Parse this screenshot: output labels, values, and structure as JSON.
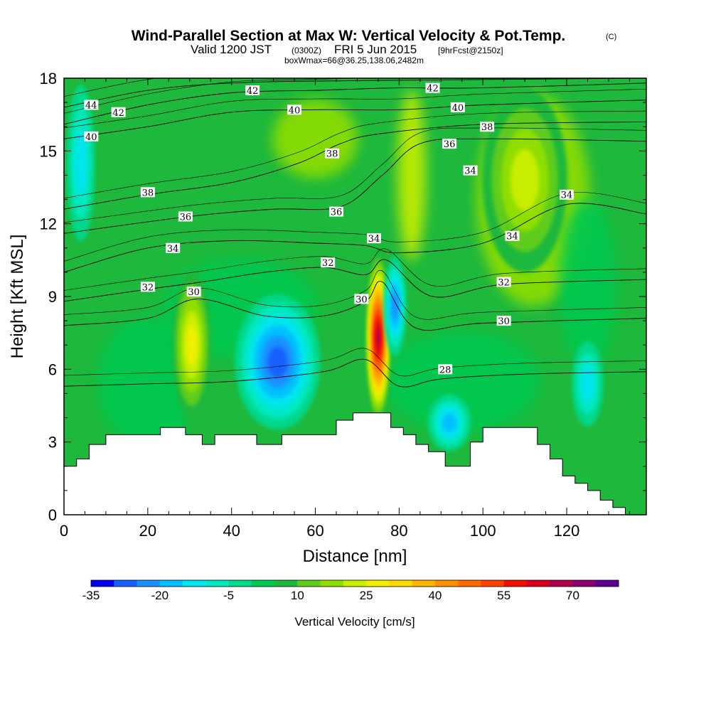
{
  "title": {
    "main": "Wind-Parallel Section at Max W: Vertical Velocity & Pot.Temp.",
    "copyright": "(C)",
    "valid_prefix": "Valid 1200 JST",
    "valid_utc": "(0300Z)",
    "valid_date": "FRI 5 Jun 2015",
    "forecast": "[9hrFcst@2150z]",
    "box_info": "boxWmax=66@36.25,138.06,2482m"
  },
  "chart_data": {
    "type": "heatmap",
    "xlabel": "Distance [nm]",
    "ylabel": "Height [Kft MSL]",
    "xlim": [
      0,
      139
    ],
    "ylim": [
      0,
      18
    ],
    "x_ticks": [
      0,
      20,
      40,
      60,
      80,
      100,
      120
    ],
    "y_ticks": [
      0,
      3,
      6,
      9,
      12,
      15,
      18
    ],
    "colorbar": {
      "title": "Vertical Velocity [cm/s]",
      "labels": [
        "-35",
        "-20",
        "-5",
        "10",
        "25",
        "40",
        "55",
        "70"
      ],
      "levels": [
        -35,
        -30,
        -25,
        -20,
        -15,
        -10,
        -5,
        0,
        5,
        10,
        15,
        20,
        25,
        30,
        35,
        40,
        45,
        50,
        55,
        60,
        65,
        70,
        75
      ],
      "colors": [
        "#0000f0",
        "#1560ff",
        "#1a90ff",
        "#00bfff",
        "#00e5ee",
        "#00e8c0",
        "#00d88a",
        "#00c850",
        "#1db83c",
        "#5fcc1a",
        "#90de00",
        "#c8ee00",
        "#f0f000",
        "#ffd800",
        "#ffb400",
        "#ff9000",
        "#ff6a00",
        "#ff4000",
        "#f01000",
        "#d80020",
        "#b0004c",
        "#8a006e",
        "#600090"
      ]
    },
    "terrain_kft": [
      [
        0,
        2.0
      ],
      [
        3,
        2.0
      ],
      [
        3,
        2.3
      ],
      [
        6,
        2.3
      ],
      [
        6,
        2.9
      ],
      [
        10,
        2.9
      ],
      [
        10,
        3.3
      ],
      [
        23,
        3.3
      ],
      [
        23,
        3.6
      ],
      [
        29,
        3.6
      ],
      [
        29,
        3.3
      ],
      [
        33,
        3.3
      ],
      [
        33,
        2.9
      ],
      [
        36,
        2.9
      ],
      [
        36,
        3.3
      ],
      [
        46,
        3.3
      ],
      [
        46,
        2.9
      ],
      [
        52,
        2.9
      ],
      [
        52,
        3.3
      ],
      [
        65,
        3.3
      ],
      [
        65,
        3.9
      ],
      [
        69,
        3.9
      ],
      [
        69,
        4.2
      ],
      [
        78,
        4.2
      ],
      [
        78,
        3.6
      ],
      [
        81,
        3.6
      ],
      [
        81,
        3.3
      ],
      [
        84,
        3.3
      ],
      [
        84,
        2.9
      ],
      [
        87,
        2.9
      ],
      [
        87,
        2.6
      ],
      [
        91,
        2.6
      ],
      [
        91,
        2.0
      ],
      [
        97,
        2.0
      ],
      [
        97,
        3.0
      ],
      [
        100,
        3.0
      ],
      [
        100,
        3.6
      ],
      [
        113,
        3.6
      ],
      [
        113,
        2.9
      ],
      [
        116,
        2.9
      ],
      [
        116,
        2.3
      ],
      [
        119,
        2.3
      ],
      [
        119,
        1.6
      ],
      [
        122,
        1.6
      ],
      [
        122,
        1.3
      ],
      [
        125,
        1.3
      ],
      [
        125,
        1.0
      ],
      [
        128,
        1.0
      ],
      [
        128,
        0.6
      ],
      [
        131,
        0.6
      ],
      [
        131,
        0.3
      ],
      [
        134,
        0.3
      ],
      [
        134,
        0.0
      ],
      [
        139,
        0.0
      ]
    ],
    "vertical_velocity_features": [
      {
        "name": "updraft-core",
        "x": 75,
        "y": 7.3,
        "value": 66
      },
      {
        "name": "downdraft-core",
        "x": 51,
        "y": 6.3,
        "value": -33
      },
      {
        "name": "updraft-west",
        "x": 30.5,
        "y": 7.0,
        "value": 28
      },
      {
        "name": "updraft-upper-east",
        "x": 110,
        "y": 13.8,
        "value": 24
      },
      {
        "name": "downdraft-lee",
        "x": 79,
        "y": 8.6,
        "value": -28
      },
      {
        "name": "downdraft-west-upper",
        "x": 4,
        "y": 14.5,
        "value": -15
      },
      {
        "name": "downdraft-east-low",
        "x": 125,
        "y": 5.4,
        "value": -15
      },
      {
        "name": "downdraft-low",
        "x": 92,
        "y": 3.8,
        "value": -20
      }
    ],
    "isentropes": [
      {
        "theta": 28,
        "points": [
          [
            0,
            5.3
          ],
          [
            20,
            5.4
          ],
          [
            40,
            5.5
          ],
          [
            62,
            5.9
          ],
          [
            72,
            6.4
          ],
          [
            80,
            5.3
          ],
          [
            90,
            5.6
          ],
          [
            110,
            5.8
          ],
          [
            139,
            5.9
          ]
        ]
      },
      {
        "theta": 30,
        "points": [
          [
            0,
            7.8
          ],
          [
            20,
            8.1
          ],
          [
            32,
            8.9
          ],
          [
            48,
            8.2
          ],
          [
            62,
            8.2
          ],
          [
            72,
            8.8
          ],
          [
            76,
            9.6
          ],
          [
            84,
            7.7
          ],
          [
            100,
            7.9
          ],
          [
            139,
            8.1
          ]
        ]
      },
      {
        "theta": 32,
        "points": [
          [
            0,
            8.8
          ],
          [
            20,
            9.3
          ],
          [
            33,
            9.6
          ],
          [
            48,
            10.0
          ],
          [
            62,
            10.2
          ],
          [
            72,
            9.9
          ],
          [
            77,
            10.5
          ],
          [
            88,
            9.0
          ],
          [
            105,
            9.5
          ],
          [
            139,
            9.7
          ]
        ]
      },
      {
        "theta": 34,
        "points": [
          [
            0,
            10.0
          ],
          [
            20,
            11.0
          ],
          [
            40,
            11.3
          ],
          [
            60,
            11.2
          ],
          [
            72,
            11.1
          ],
          [
            80,
            10.8
          ],
          [
            100,
            11.2
          ],
          [
            120,
            12.8
          ],
          [
            139,
            12.4
          ]
        ]
      },
      {
        "theta": 36,
        "points": [
          [
            0,
            11.6
          ],
          [
            30,
            12.3
          ],
          [
            50,
            12.6
          ],
          [
            66,
            12.7
          ],
          [
            76,
            14.0
          ],
          [
            85,
            15.3
          ],
          [
            100,
            15.5
          ],
          [
            139,
            15.4
          ]
        ]
      },
      {
        "theta": 38,
        "points": [
          [
            0,
            12.6
          ],
          [
            20,
            13.2
          ],
          [
            40,
            13.7
          ],
          [
            56,
            14.5
          ],
          [
            66,
            15.3
          ],
          [
            75,
            15.7
          ],
          [
            100,
            16.1
          ],
          [
            139,
            16.2
          ]
        ]
      },
      {
        "theta": 40,
        "points": [
          [
            0,
            15.5
          ],
          [
            20,
            16.0
          ],
          [
            40,
            16.6
          ],
          [
            60,
            16.7
          ],
          [
            80,
            16.7
          ],
          [
            100,
            16.9
          ],
          [
            139,
            17.1
          ]
        ]
      },
      {
        "theta": 42,
        "points": [
          [
            0,
            16.1
          ],
          [
            20,
            16.9
          ],
          [
            40,
            17.4
          ],
          [
            60,
            17.5
          ],
          [
            80,
            17.6
          ],
          [
            100,
            17.6
          ],
          [
            139,
            17.8
          ]
        ]
      },
      {
        "theta": 44,
        "points": [
          [
            0,
            16.8
          ],
          [
            20,
            17.5
          ],
          [
            40,
            17.8
          ],
          [
            70,
            17.9
          ],
          [
            139,
            18.0
          ]
        ]
      }
    ],
    "isentrope_labels": [
      {
        "text": "28",
        "x": 91,
        "y": 6.0
      },
      {
        "text": "30",
        "x": 31,
        "y": 9.2
      },
      {
        "text": "30",
        "x": 71,
        "y": 8.9
      },
      {
        "text": "30",
        "x": 105,
        "y": 8.0
      },
      {
        "text": "32",
        "x": 20,
        "y": 9.4
      },
      {
        "text": "32",
        "x": 63,
        "y": 10.4
      },
      {
        "text": "32",
        "x": 105,
        "y": 9.6
      },
      {
        "text": "34",
        "x": 26,
        "y": 11.0
      },
      {
        "text": "34",
        "x": 74,
        "y": 11.4
      },
      {
        "text": "34",
        "x": 107,
        "y": 11.5
      },
      {
        "text": "34",
        "x": 120,
        "y": 13.2
      },
      {
        "text": "34",
        "x": 97,
        "y": 14.2
      },
      {
        "text": "36",
        "x": 29,
        "y": 12.3
      },
      {
        "text": "36",
        "x": 65,
        "y": 12.5
      },
      {
        "text": "36",
        "x": 92,
        "y": 15.3
      },
      {
        "text": "38",
        "x": 20,
        "y": 13.3
      },
      {
        "text": "38",
        "x": 64,
        "y": 14.9
      },
      {
        "text": "38",
        "x": 101,
        "y": 16.0
      },
      {
        "text": "40",
        "x": 6.5,
        "y": 15.6
      },
      {
        "text": "40",
        "x": 55,
        "y": 16.7
      },
      {
        "text": "40",
        "x": 94,
        "y": 16.8
      },
      {
        "text": "42",
        "x": 13,
        "y": 16.6
      },
      {
        "text": "42",
        "x": 45,
        "y": 17.5
      },
      {
        "text": "42",
        "x": 88,
        "y": 17.6
      },
      {
        "text": "44",
        "x": 6.5,
        "y": 16.9
      }
    ]
  }
}
